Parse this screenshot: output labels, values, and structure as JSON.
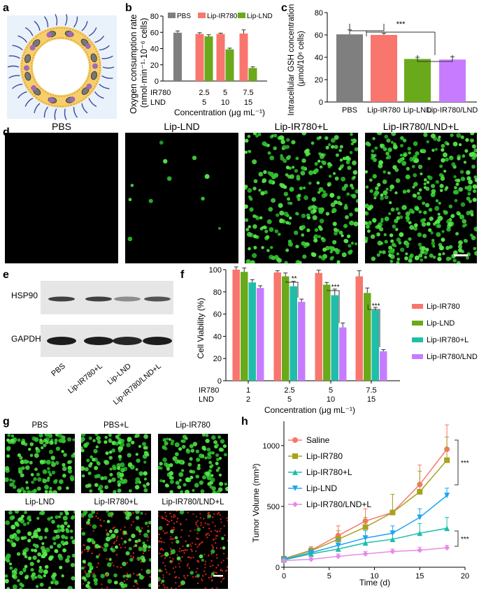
{
  "panel_letters": [
    "a",
    "b",
    "c",
    "d",
    "e",
    "f",
    "g",
    "h"
  ],
  "colors": {
    "gray": "#7f7f7f",
    "salmon": "#f8766d",
    "green": "#6aaa1a",
    "cyan": "#1fbdaa",
    "purple": "#c77cff",
    "blue": "#1ea5f0",
    "olive": "#a8a21f",
    "pink": "#e68be6",
    "lightblue": "#e9f1fb"
  },
  "panel_d": {
    "titles": [
      "PBS",
      "Lip-LND",
      "Lip-IR780+L",
      "Lip-IR780/LND+L"
    ],
    "cell_density": [
      0.0,
      0.02,
      0.55,
      0.65
    ]
  },
  "panel_e": {
    "row_labels": [
      "HSP90",
      "GAPDH"
    ],
    "lane_labels": [
      "PBS",
      "Lip-IR780+L",
      "Lip-LND",
      "Lip-IR780/LND+L"
    ],
    "hsp90_intensity": [
      0.85,
      0.85,
      0.45,
      0.75
    ],
    "gapdh_intensity": [
      0.95,
      0.95,
      0.9,
      0.95
    ]
  },
  "panel_g": {
    "titles": [
      "PBS",
      "PBS+L",
      "Lip-IR780",
      "Lip-LND",
      "Lip-IR780+L",
      "Lip-IR780/LND+L"
    ],
    "green_fraction": [
      1.0,
      1.0,
      1.0,
      1.0,
      0.5,
      0.1
    ]
  },
  "chart_data": [
    {
      "panel": "b",
      "type": "bar",
      "ylabel": "Oxygen consumption rate (nmol·min⁻¹·10⁻⁶ cells)",
      "xlabel": "Concentration (μg mL⁻¹)",
      "row_labels": [
        "IR780",
        "LND"
      ],
      "groups": [
        {
          "ir780": "",
          "lnd": ""
        },
        {
          "ir780": "2.5",
          "lnd": "5"
        },
        {
          "ir780": "5",
          "lnd": "10"
        },
        {
          "ir780": "7.5",
          "lnd": "15"
        }
      ],
      "ylim": [
        0,
        80
      ],
      "yticks": [
        0,
        20,
        40,
        60,
        80
      ],
      "series": [
        {
          "name": "PBS",
          "values": [
            59.5,
            null,
            null,
            null
          ],
          "errors": [
            2.2,
            null,
            null,
            null
          ]
        },
        {
          "name": "Lip-IR780",
          "values": [
            null,
            58,
            58,
            58.5
          ],
          "errors": [
            null,
            1.5,
            1,
            4.5
          ]
        },
        {
          "name": "Lip-LND",
          "values": [
            null,
            55,
            39,
            16
          ],
          "errors": [
            null,
            2,
            1.5,
            1.5
          ]
        }
      ]
    },
    {
      "panel": "c",
      "type": "bar",
      "ylabel": "Intracellular GSH concentration (μmol/10⁶ cells)",
      "categories": [
        "PBS",
        "Lip-IR780",
        "Lip-LND",
        "Lip-IR780/LND"
      ],
      "values": [
        60.5,
        60,
        38.5,
        38
      ],
      "errors": [
        4,
        1.5,
        1.5,
        2.5
      ],
      "ylim": [
        0,
        80
      ],
      "yticks": [
        0,
        20,
        40,
        60,
        80
      ],
      "significance": "***"
    },
    {
      "panel": "f",
      "type": "bar",
      "ylabel": "Cell Viability (%)",
      "xlabel": "Concentration (μg mL⁻¹)",
      "row_labels": [
        "IR780",
        "LND"
      ],
      "groups": [
        {
          "ir780": "1",
          "lnd": "2"
        },
        {
          "ir780": "2.5",
          "lnd": "5"
        },
        {
          "ir780": "5",
          "lnd": "10"
        },
        {
          "ir780": "7.5",
          "lnd": "15"
        }
      ],
      "ylim": [
        0,
        100
      ],
      "yticks": [
        0,
        20,
        40,
        60,
        80,
        100
      ],
      "series": [
        {
          "name": "Lip-IR780",
          "values": [
            100,
            97.5,
            97,
            94
          ],
          "errors": [
            2.5,
            1.5,
            2.5,
            5
          ]
        },
        {
          "name": "Lip-LND",
          "values": [
            98,
            94,
            86.5,
            79
          ],
          "errors": [
            3.5,
            3,
            2,
            4.5
          ]
        },
        {
          "name": "Lip-IR780+L",
          "values": [
            88.5,
            85,
            77,
            63.5
          ],
          "errors": [
            2.5,
            4.5,
            5.5,
            2.5
          ]
        },
        {
          "name": "Lip-IR780/LND",
          "values": [
            83.5,
            71,
            48,
            26.5
          ],
          "errors": [
            2,
            2.5,
            4,
            1.5
          ]
        }
      ],
      "significance": [
        "**",
        "***",
        "***"
      ]
    },
    {
      "panel": "h",
      "type": "line",
      "ylabel": "Tumor Volume (mm³)",
      "xlabel": "Time (d)",
      "xlim": [
        0,
        20
      ],
      "xticks": [
        0,
        5,
        10,
        15,
        20
      ],
      "ylim": [
        0,
        1200
      ],
      "yticks": [
        0,
        500,
        1000
      ],
      "x": [
        0,
        3,
        6,
        9,
        12,
        15,
        18
      ],
      "series": [
        {
          "name": "Saline",
          "values": [
            70,
            140,
            260,
            380,
            450,
            680,
            970
          ],
          "errors": [
            20,
            30,
            80,
            100,
            150,
            160,
            200
          ]
        },
        {
          "name": "Lip-IR780",
          "values": [
            70,
            135,
            230,
            330,
            450,
            620,
            880
          ],
          "errors": [
            20,
            25,
            70,
            80,
            150,
            170,
            190
          ]
        },
        {
          "name": "Lip-IR780+L",
          "values": [
            60,
            110,
            150,
            200,
            230,
            280,
            320
          ],
          "errors": [
            15,
            20,
            30,
            50,
            50,
            80,
            90
          ]
        },
        {
          "name": "Lip-LND",
          "values": [
            65,
            120,
            180,
            240,
            280,
            410,
            590
          ],
          "errors": [
            15,
            25,
            50,
            60,
            60,
            70,
            60
          ]
        },
        {
          "name": "Lip-IR780/LND+L",
          "values": [
            55,
            65,
            90,
            110,
            130,
            140,
            160
          ],
          "errors": [
            10,
            15,
            20,
            20,
            20,
            25,
            20
          ]
        }
      ],
      "significance": [
        "***",
        "***"
      ]
    }
  ]
}
